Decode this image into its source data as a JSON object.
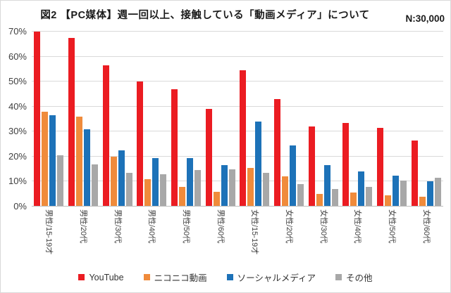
{
  "title": "図2 【PC媒体】週一回以上、接触している「動画メディア」について",
  "sample_size_label": "N:30,000",
  "chart_data": {
    "type": "bar",
    "title": "図2 【PC媒体】週一回以上、接触している「動画メディア」について",
    "annotation": "N:30,000",
    "categories": [
      "男性/15-19才",
      "男性/20代",
      "男性/30代",
      "男性/40代",
      "男性/50代",
      "男性/60代",
      "女性/15-19才",
      "女性/20代",
      "女性/30代",
      "女性/40代",
      "女性/50代",
      "女性/60代"
    ],
    "series": [
      {
        "name": "YouTube",
        "key": "youtube",
        "color": "#eb1c22",
        "values": [
          70,
          67.5,
          56.5,
          50,
          47,
          39,
          54.5,
          43,
          32,
          33.5,
          31.5,
          26.5
        ]
      },
      {
        "name": "ニコニコ動画",
        "key": "niconico",
        "color": "#f08b3b",
        "values": [
          38,
          36,
          20,
          11,
          8,
          6,
          15.5,
          12,
          5,
          5.5,
          4.5,
          4
        ]
      },
      {
        "name": "ソーシャルメディア",
        "key": "social",
        "color": "#1d72b8",
        "values": [
          36.5,
          31,
          22.5,
          19.5,
          19.5,
          16.5,
          34,
          24.5,
          16.5,
          14,
          12.5,
          10
        ]
      },
      {
        "name": "その他",
        "key": "other",
        "color": "#a8a8a8",
        "values": [
          20.5,
          17,
          13.5,
          13,
          14.5,
          15,
          13.5,
          9,
          7,
          8,
          10.5,
          11.5
        ]
      }
    ],
    "xlabel": "",
    "ylabel": "",
    "ylim": [
      0,
      70
    ],
    "ytick_step": 10,
    "ytick_suffix": "%",
    "yticks": [
      "0%",
      "10%",
      "20%",
      "30%",
      "40%",
      "50%",
      "60%",
      "70%"
    ],
    "grid": true,
    "legend_position": "bottom",
    "colors": {
      "gridline": "#d9d9d9",
      "axis_line": "#bfbfbf",
      "tick_text": "#404040",
      "title_text": "#1a1a1a",
      "background": "#ffffff"
    }
  }
}
